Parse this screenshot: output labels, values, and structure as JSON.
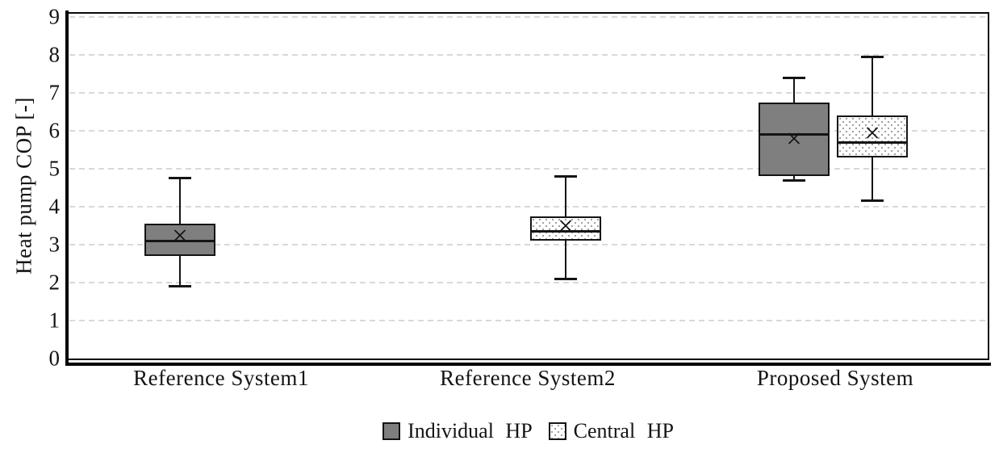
{
  "figure": {
    "background": "#ffffff",
    "text_color": "#141414"
  },
  "chart_data": {
    "type": "boxplot",
    "title": "",
    "xlabel": "",
    "ylabel": "Heat pump COP [-]",
    "ylim": [
      0,
      9
    ],
    "ytick_interval": 1,
    "y_ticks": [
      "0",
      "1",
      "2",
      "3",
      "4",
      "5",
      "6",
      "7",
      "8",
      "9"
    ],
    "grid": "horizontal dashed light-gray",
    "gridline_color": "#d9d9d9",
    "categories": [
      "Reference System1",
      "Reference System2",
      "Proposed System"
    ],
    "legend": {
      "position": "bottom-center"
    },
    "series": [
      {
        "name": "Individual HP",
        "fill": "#7f7f7f",
        "pattern": "solid",
        "boxes": [
          {
            "category": "Reference System1",
            "min": 1.9,
            "q1": 2.7,
            "median": 3.1,
            "mean": 3.2,
            "q3": 3.55,
            "max": 4.75
          },
          null,
          {
            "category": "Proposed System",
            "min": 4.7,
            "q1": 4.8,
            "median": 5.9,
            "mean": 5.75,
            "q3": 6.75,
            "max": 7.4
          }
        ]
      },
      {
        "name": "Central HP",
        "fill": "#ffffff",
        "pattern": "dots",
        "boxes": [
          null,
          {
            "category": "Reference System2",
            "min": 2.1,
            "q1": 3.1,
            "median": 3.35,
            "mean": 3.45,
            "q3": 3.75,
            "max": 4.8
          },
          {
            "category": "Proposed System",
            "min": 4.15,
            "q1": 5.3,
            "median": 5.7,
            "mean": 5.9,
            "q3": 6.4,
            "max": 7.95
          }
        ]
      }
    ]
  }
}
